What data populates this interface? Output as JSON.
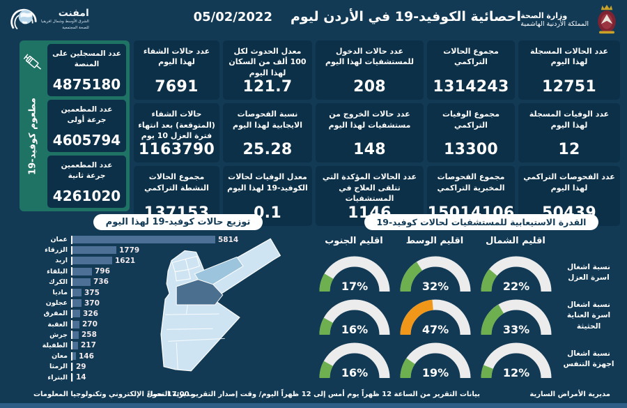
{
  "header": {
    "title": "احصائية الكوفيد-19 في الأردن ليوم",
    "date": "05/02/2022",
    "ministry": {
      "line1": "وزارة الصحة",
      "line2": "المملكة الأردنية الهاشمية"
    },
    "org": {
      "name": "امفنت",
      "sub1": "الشرق الأوسط وشمال افريقيا",
      "sub2": "للصحة المجتمعية"
    }
  },
  "vaccine": {
    "side_label": "مطعوم كوفيد-19",
    "boxes": [
      {
        "label": "عدد المسجلين على المنصة",
        "value": "4875180"
      },
      {
        "label": "عدد المطعمين جرعة أولى",
        "value": "4605794"
      },
      {
        "label": "عدد المطعمين جرعة ثانية",
        "value": "4261020"
      }
    ]
  },
  "stats": {
    "cards": [
      {
        "label": "عدد الحالات المسجلة لهذا اليوم",
        "value": "12751"
      },
      {
        "label": "مجموع الحالات التراكمي",
        "value": "1314243"
      },
      {
        "label": "عدد حالات الدخول للمستشفيات لهذا اليوم",
        "value": "208"
      },
      {
        "label": "معدل الحدوث لكل 100 ألف من السكان لهذا اليوم",
        "value": "121.7"
      },
      {
        "label": "عدد حالات الشفاء لهذا اليوم",
        "value": "7691"
      },
      {
        "label": "عدد الوفيات المسجلة لهذا اليوم",
        "value": "12"
      },
      {
        "label": "مجموع الوفيات التراكمي",
        "value": "13300"
      },
      {
        "label": "عدد حالات الخروج من مستشفيات لهذا اليوم",
        "value": "148"
      },
      {
        "label": "نسبة الفحوصات الايجابية لهذا اليوم",
        "value": "25.28"
      },
      {
        "label": "حالات الشفاء (المتوقعة) بعد انتهاء فترة العزل 10 يوم",
        "value": "1163790"
      },
      {
        "label": "عدد الفحوصات التراكمي لهذا اليوم",
        "value": "50439"
      },
      {
        "label": "مجموع الفحوصات المخبرية التراكمي",
        "value": "15014106"
      },
      {
        "label": "عدد الحالات المؤكدة التي تتلقى العلاج في المستشفيات",
        "value": "1146"
      },
      {
        "label": "معدل الوفيات لحالات الكوفيد-19 لهذا اليوم",
        "value": "0.1"
      },
      {
        "label": "مجموع الحالات النشطة التراكمي",
        "value": "137153"
      }
    ]
  },
  "chart_data": [
    {
      "type": "bar",
      "title": "توزيع حالات كوفيد-19 لهذا اليوم",
      "orientation": "horizontal",
      "categories": [
        "عمان",
        "الزرقاء",
        "اربد",
        "البلقاء",
        "الكرك",
        "ماديا",
        "عجلون",
        "المفرق",
        "العقبة",
        "جرش",
        "الطفيلة",
        "معان",
        "الرمثا",
        "البتراء"
      ],
      "values": [
        5814,
        1779,
        1621,
        796,
        736,
        375,
        370,
        326,
        270,
        258,
        217,
        146,
        29,
        14
      ],
      "xlim": [
        0,
        5814
      ],
      "grid": false
    },
    {
      "type": "gauge",
      "title": "القدرة الاستيعابية للمستشفيات لحالات كوفيد-19",
      "unit": "%",
      "columns": [
        "اقليم الشمال",
        "اقليم الوسط",
        "اقليم الجنوب"
      ],
      "rows": [
        {
          "label": "نسبة اشغال اسرة العزل",
          "values": [
            22,
            32,
            17
          ],
          "colors": [
            "green",
            "green",
            "green"
          ]
        },
        {
          "label": "نسبة اشغال اسرة العناية الحثيثة",
          "values": [
            33,
            47,
            16
          ],
          "colors": [
            "green",
            "orange",
            "green"
          ]
        },
        {
          "label": "نسبة اشغال اجهزة التنفس",
          "values": [
            12,
            19,
            16
          ],
          "colors": [
            "green",
            "green",
            "green"
          ]
        }
      ]
    }
  ],
  "footer": {
    "right": "مديرية الأمراض السارية",
    "center": "بيانات التقرير من الساعة 12 ظهراً يوم أمس إلى 12 ظهراً اليوم/ وقت إصدار التقرير 17:00 مساءً",
    "left": "مديرية التحول الإلكتروني وتكنولوجيا المعلومات"
  },
  "colors": {
    "background": "#123a55",
    "card": "#0c3048",
    "vaccine_panel": "#1e7364",
    "bar": "#4d7096",
    "gauge_green": "#6eaf50",
    "gauge_orange": "#f09619",
    "gauge_track": "#ececec",
    "map_light": "#cfe4f2",
    "map_mid": "#9cc4dc",
    "map_dark": "#4b6f8e"
  }
}
